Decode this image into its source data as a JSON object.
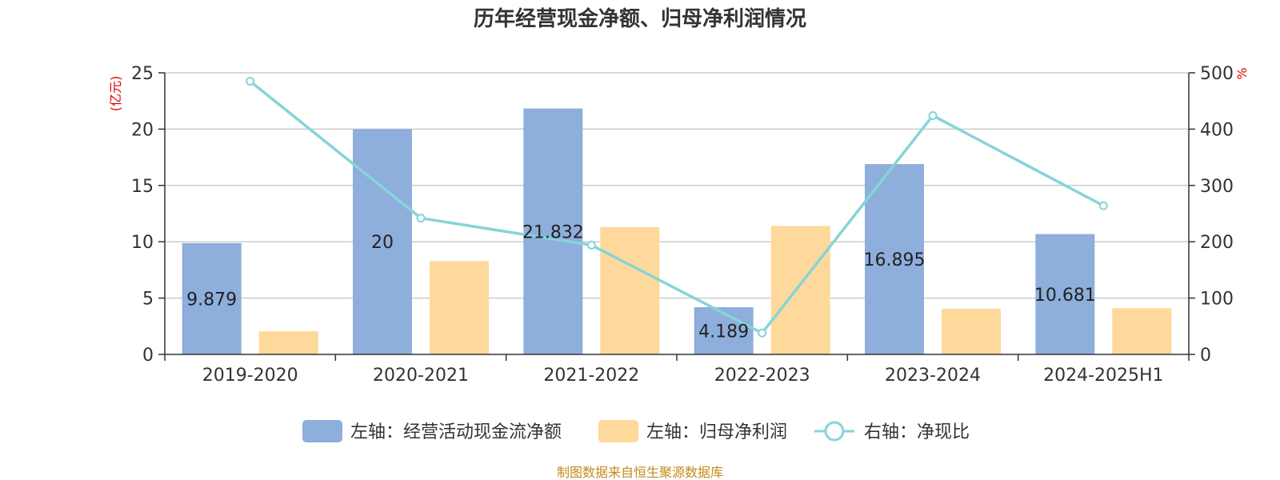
{
  "chart_data": {
    "type": "bar",
    "title": "历年经营现金净额、归母净利润情况",
    "categories": [
      "2019-2020",
      "2020-2021",
      "2021-2022",
      "2022-2023",
      "2023-2024",
      "2024-2025H1"
    ],
    "left_axis": {
      "unit": "(亿元)",
      "ylim": [
        0,
        25
      ],
      "ticks": [
        "0",
        "5",
        "10",
        "15",
        "20",
        "25"
      ]
    },
    "right_axis": {
      "unit": "%",
      "ylim": [
        0,
        500
      ],
      "ticks": [
        "0",
        "100",
        "200",
        "300",
        "400",
        "500"
      ]
    },
    "series": [
      {
        "name": "左轴：经营活动现金流净额",
        "type": "bar",
        "axis": "left",
        "color": "#8eaedb",
        "values": [
          9.879,
          20,
          21.832,
          4.189,
          16.895,
          10.681
        ],
        "labels": [
          "9.879",
          "20",
          "21.832",
          "4.189",
          "16.895",
          "10.681"
        ]
      },
      {
        "name": "左轴：归母净利润",
        "type": "bar",
        "axis": "left",
        "color": "#fed99b",
        "values": [
          2.05,
          8.3,
          11.3,
          11.4,
          4.05,
          4.1
        ]
      },
      {
        "name": "右轴：净现比",
        "type": "line",
        "axis": "right",
        "color": "#86d4d8",
        "values": [
          485,
          242,
          194,
          38,
          424,
          264
        ]
      }
    ],
    "grid": true,
    "legend_position": "bottom"
  },
  "footer": {
    "source": "制图数据来自恒生聚源数据库"
  }
}
